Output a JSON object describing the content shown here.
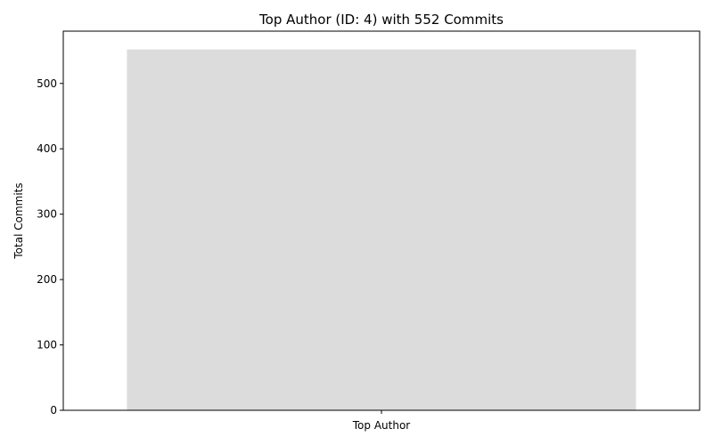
{
  "chart_data": {
    "type": "bar",
    "title": "Top Author (ID: 4) with 552 Commits",
    "xlabel": "",
    "ylabel": "Total Commits",
    "categories": [
      "Top Author"
    ],
    "values": [
      552
    ],
    "ylim": [
      0,
      580
    ],
    "yticks": [
      0,
      100,
      200,
      300,
      400,
      500
    ],
    "grid": false,
    "bar_color": "#dcdcdc"
  }
}
